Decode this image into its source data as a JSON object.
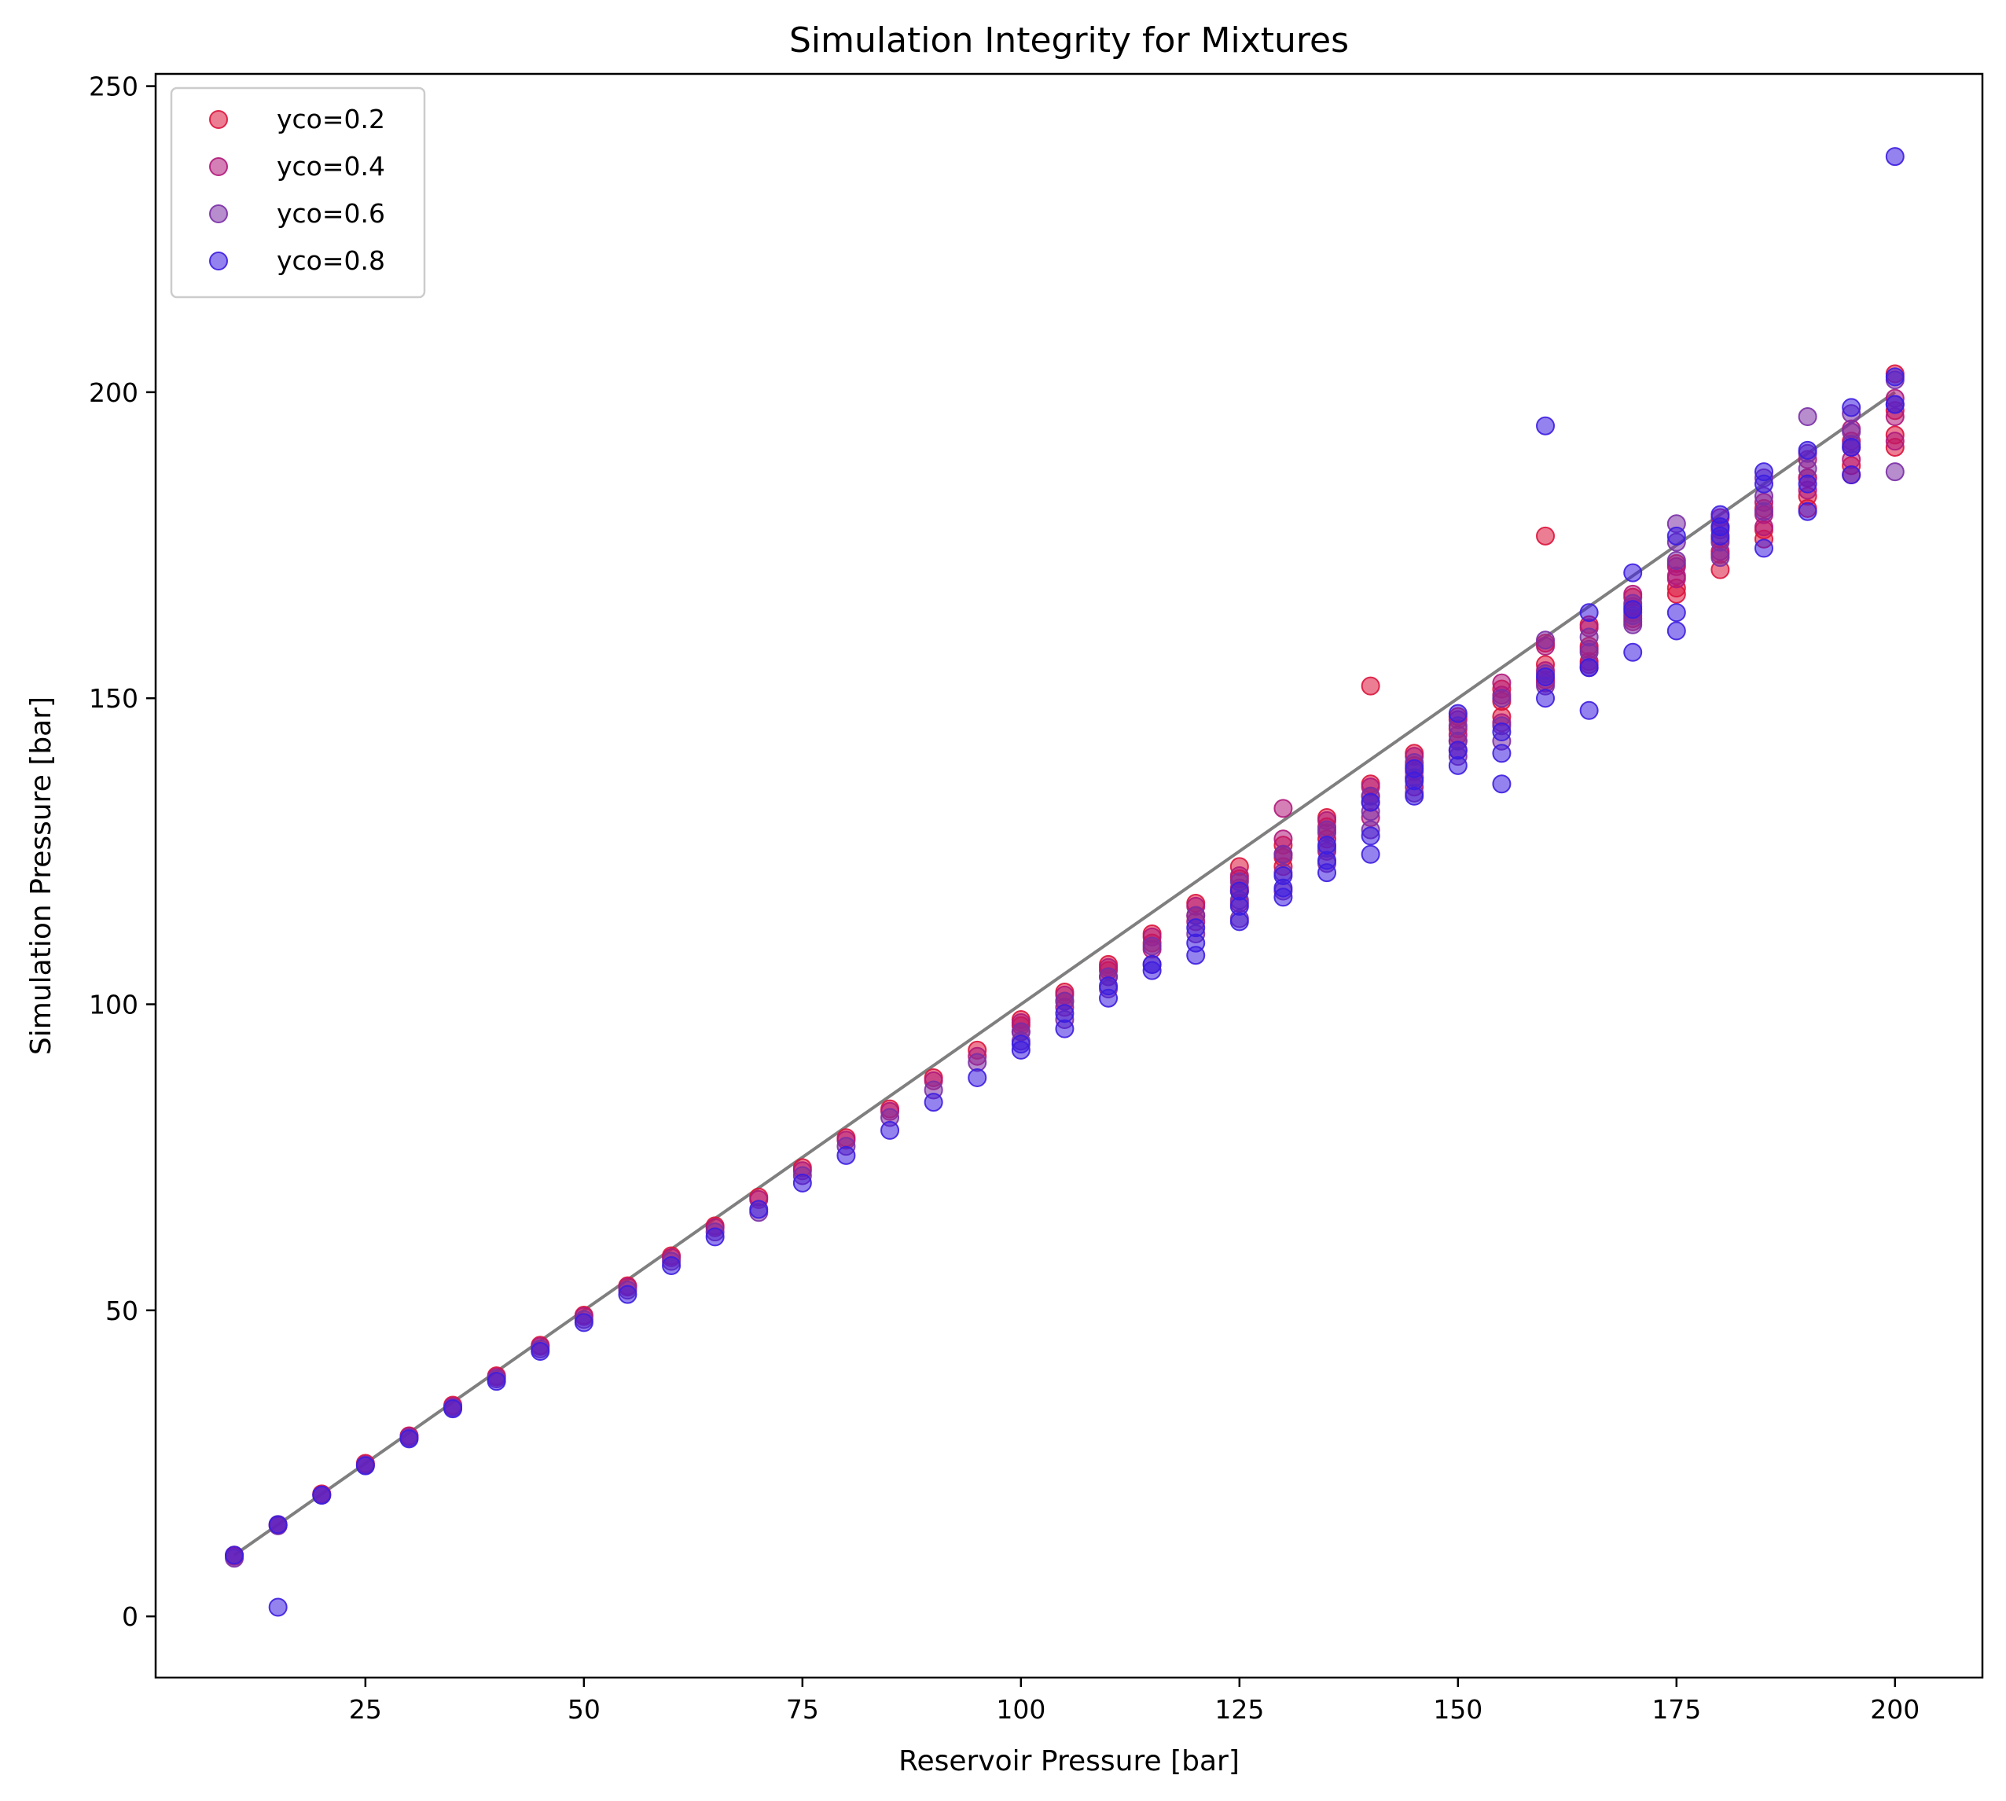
{
  "chart_data": {
    "type": "scatter",
    "title": "Simulation Integrity for Mixtures",
    "xlabel": "Reservoir Pressure [bar]",
    "ylabel": "Simulation Pressure [bar]",
    "xlim": [
      1,
      210
    ],
    "ylim": [
      -10,
      252
    ],
    "xticks": [
      25,
      50,
      75,
      100,
      125,
      150,
      175,
      200
    ],
    "yticks": [
      0,
      50,
      100,
      150,
      200,
      250
    ],
    "grid": false,
    "legend_position": "top-left",
    "reference_line": {
      "x": [
        10,
        200
      ],
      "y": [
        10,
        200
      ],
      "color": "#7f7f7f"
    },
    "series": [
      {
        "name": "yco=0.2",
        "color": "#dc143c",
        "points": [
          [
            10,
            10
          ],
          [
            15,
            15
          ],
          [
            20,
            20
          ],
          [
            25,
            25
          ],
          [
            30,
            29.5
          ],
          [
            35,
            34.5
          ],
          [
            40,
            39.3
          ],
          [
            45,
            44.3
          ],
          [
            50,
            49.2
          ],
          [
            55,
            54
          ],
          [
            60,
            58.9
          ],
          [
            65,
            63.8
          ],
          [
            70,
            68.5
          ],
          [
            75,
            73.3
          ],
          [
            80,
            78.2
          ],
          [
            85,
            82.9
          ],
          [
            90,
            88
          ],
          [
            95,
            92.5
          ],
          [
            100,
            97.5
          ],
          [
            100,
            96.5
          ],
          [
            105,
            102
          ],
          [
            105,
            100.5
          ],
          [
            110,
            106.5
          ],
          [
            110,
            105.5
          ],
          [
            115,
            111.5
          ],
          [
            115,
            110
          ],
          [
            120,
            116.5
          ],
          [
            120,
            114.5
          ],
          [
            125,
            122.5
          ],
          [
            125,
            120.5
          ],
          [
            125,
            118.5
          ],
          [
            130,
            126
          ],
          [
            130,
            124
          ],
          [
            130,
            122.5
          ],
          [
            135,
            130.5
          ],
          [
            135,
            129
          ],
          [
            135,
            127
          ],
          [
            140,
            136
          ],
          [
            140,
            134
          ],
          [
            140,
            152
          ],
          [
            145,
            141
          ],
          [
            145,
            139
          ],
          [
            145,
            137
          ],
          [
            150,
            147
          ],
          [
            150,
            145
          ],
          [
            150,
            143
          ],
          [
            155,
            151.5
          ],
          [
            155,
            149.5
          ],
          [
            155,
            147
          ],
          [
            160,
            159
          ],
          [
            160,
            155.5
          ],
          [
            160,
            153
          ],
          [
            160,
            176.5
          ],
          [
            165,
            162
          ],
          [
            165,
            158.5
          ],
          [
            165,
            156
          ],
          [
            170,
            166.5
          ],
          [
            170,
            164
          ],
          [
            170,
            163
          ],
          [
            175,
            172
          ],
          [
            175,
            168
          ],
          [
            175,
            167
          ],
          [
            180,
            173.5
          ],
          [
            180,
            171
          ],
          [
            180,
            176
          ],
          [
            185,
            177.5
          ],
          [
            185,
            176
          ],
          [
            185,
            181
          ],
          [
            190,
            186
          ],
          [
            190,
            183
          ],
          [
            190,
            181
          ],
          [
            195,
            188
          ],
          [
            195,
            186.5
          ],
          [
            195,
            192
          ],
          [
            200,
            203
          ],
          [
            200,
            197
          ],
          [
            200,
            193
          ],
          [
            200,
            191
          ]
        ]
      },
      {
        "name": "yco=0.4",
        "color": "#b0187a",
        "points": [
          [
            10,
            9.8
          ],
          [
            15,
            14.9
          ],
          [
            20,
            19.9
          ],
          [
            25,
            24.8
          ],
          [
            30,
            29.4
          ],
          [
            35,
            34.3
          ],
          [
            40,
            39.1
          ],
          [
            45,
            44.1
          ],
          [
            50,
            49
          ],
          [
            55,
            53.8
          ],
          [
            60,
            58.6
          ],
          [
            65,
            63.5
          ],
          [
            70,
            68.1
          ],
          [
            75,
            72.8
          ],
          [
            80,
            77.8
          ],
          [
            85,
            82.5
          ],
          [
            90,
            87.5
          ],
          [
            95,
            91.5
          ],
          [
            100,
            97
          ],
          [
            100,
            95.5
          ],
          [
            105,
            101.5
          ],
          [
            105,
            99.5
          ],
          [
            110,
            106
          ],
          [
            110,
            104.5
          ],
          [
            115,
            111
          ],
          [
            115,
            109
          ],
          [
            120,
            116
          ],
          [
            120,
            113.5
          ],
          [
            125,
            121
          ],
          [
            125,
            119
          ],
          [
            125,
            116.5
          ],
          [
            130,
            132
          ],
          [
            130,
            127
          ],
          [
            130,
            124.5
          ],
          [
            135,
            130
          ],
          [
            135,
            128
          ],
          [
            135,
            125
          ],
          [
            140,
            135.5
          ],
          [
            140,
            133
          ],
          [
            140,
            130.5
          ],
          [
            145,
            140.5
          ],
          [
            145,
            138
          ],
          [
            145,
            135.5
          ],
          [
            150,
            146.5
          ],
          [
            150,
            144
          ],
          [
            150,
            141.5
          ],
          [
            155,
            152.5
          ],
          [
            155,
            150.5
          ],
          [
            155,
            146
          ],
          [
            160,
            158.5
          ],
          [
            160,
            154.5
          ],
          [
            160,
            152.5
          ],
          [
            165,
            161.5
          ],
          [
            165,
            158
          ],
          [
            165,
            155.5
          ],
          [
            170,
            167
          ],
          [
            170,
            165
          ],
          [
            170,
            162.5
          ],
          [
            175,
            171.5
          ],
          [
            175,
            169.5
          ],
          [
            175,
            170
          ],
          [
            180,
            179.5
          ],
          [
            180,
            177.5
          ],
          [
            180,
            174
          ],
          [
            185,
            182
          ],
          [
            185,
            180
          ],
          [
            185,
            178
          ],
          [
            190,
            189
          ],
          [
            190,
            186
          ],
          [
            190,
            184
          ],
          [
            195,
            194
          ],
          [
            195,
            191
          ],
          [
            195,
            189
          ],
          [
            200,
            199
          ],
          [
            200,
            196
          ],
          [
            200,
            192
          ]
        ]
      },
      {
        "name": "yco=0.6",
        "color": "#7b2fa6",
        "points": [
          [
            10,
            9.5
          ],
          [
            15,
            14.8
          ],
          [
            20,
            19.8
          ],
          [
            25,
            24.7
          ],
          [
            30,
            29.2
          ],
          [
            35,
            34.1
          ],
          [
            40,
            38.8
          ],
          [
            45,
            43.7
          ],
          [
            50,
            48.5
          ],
          [
            55,
            53.3
          ],
          [
            60,
            58
          ],
          [
            65,
            62.8
          ],
          [
            70,
            66
          ],
          [
            75,
            72
          ],
          [
            80,
            76.8
          ],
          [
            85,
            81.5
          ],
          [
            90,
            86
          ],
          [
            95,
            90.5
          ],
          [
            100,
            95.5
          ],
          [
            100,
            94
          ],
          [
            105,
            100.5
          ],
          [
            105,
            97.5
          ],
          [
            110,
            104.5
          ],
          [
            110,
            102.5
          ],
          [
            115,
            109.5
          ],
          [
            115,
            106.5
          ],
          [
            120,
            114.5
          ],
          [
            120,
            111.5
          ],
          [
            125,
            120
          ],
          [
            125,
            117
          ],
          [
            125,
            114
          ],
          [
            130,
            124.5
          ],
          [
            130,
            121.5
          ],
          [
            130,
            118.5
          ],
          [
            135,
            128.5
          ],
          [
            135,
            125.5
          ],
          [
            135,
            123
          ],
          [
            140,
            134
          ],
          [
            140,
            131.5
          ],
          [
            140,
            128.5
          ],
          [
            145,
            139.5
          ],
          [
            145,
            137
          ],
          [
            145,
            134.5
          ],
          [
            150,
            145.5
          ],
          [
            150,
            143
          ],
          [
            150,
            140.5
          ],
          [
            155,
            150
          ],
          [
            155,
            145.5
          ],
          [
            155,
            143
          ],
          [
            160,
            159.5
          ],
          [
            160,
            154
          ],
          [
            160,
            152
          ],
          [
            165,
            160
          ],
          [
            165,
            157.5
          ],
          [
            165,
            155
          ],
          [
            170,
            165.5
          ],
          [
            170,
            163.5
          ],
          [
            170,
            162
          ],
          [
            175,
            178.5
          ],
          [
            175,
            175.5
          ],
          [
            175,
            172.5
          ],
          [
            180,
            178
          ],
          [
            180,
            175.5
          ],
          [
            180,
            173
          ],
          [
            185,
            186
          ],
          [
            185,
            183
          ],
          [
            185,
            180.5
          ],
          [
            190,
            196
          ],
          [
            190,
            190
          ],
          [
            190,
            187.5
          ],
          [
            195,
            196.5
          ],
          [
            195,
            193.5
          ],
          [
            195,
            191.5
          ],
          [
            200,
            202
          ],
          [
            200,
            187
          ],
          [
            200,
            198
          ]
        ]
      },
      {
        "name": "yco=0.8",
        "color": "#3c1de0",
        "points": [
          [
            10,
            10
          ],
          [
            15,
            15
          ],
          [
            15,
            1.5
          ],
          [
            20,
            19.8
          ],
          [
            25,
            24.6
          ],
          [
            30,
            29
          ],
          [
            35,
            33.9
          ],
          [
            40,
            38.4
          ],
          [
            45,
            43.3
          ],
          [
            50,
            48
          ],
          [
            55,
            52.6
          ],
          [
            60,
            57.3
          ],
          [
            65,
            62
          ],
          [
            70,
            66.5
          ],
          [
            75,
            70.8
          ],
          [
            80,
            75.3
          ],
          [
            85,
            79.4
          ],
          [
            90,
            84
          ],
          [
            95,
            88
          ],
          [
            100,
            92.5
          ],
          [
            100,
            93.5
          ],
          [
            105,
            96
          ],
          [
            105,
            98.5
          ],
          [
            110,
            101
          ],
          [
            110,
            103
          ],
          [
            115,
            105.5
          ],
          [
            115,
            106.5
          ],
          [
            120,
            108
          ],
          [
            120,
            110
          ],
          [
            120,
            112.5
          ],
          [
            125,
            113.5
          ],
          [
            125,
            116
          ],
          [
            125,
            118.5
          ],
          [
            130,
            117.5
          ],
          [
            130,
            119
          ],
          [
            130,
            121
          ],
          [
            135,
            121.5
          ],
          [
            135,
            123.5
          ],
          [
            135,
            126
          ],
          [
            140,
            124.5
          ],
          [
            140,
            127.5
          ],
          [
            140,
            133
          ],
          [
            145,
            134
          ],
          [
            145,
            136.5
          ],
          [
            145,
            138.5
          ],
          [
            150,
            139
          ],
          [
            150,
            141.5
          ],
          [
            150,
            147.5
          ],
          [
            155,
            136
          ],
          [
            155,
            141
          ],
          [
            155,
            144.5
          ],
          [
            160,
            150
          ],
          [
            160,
            153.5
          ],
          [
            160,
            194.5
          ],
          [
            165,
            148
          ],
          [
            165,
            155
          ],
          [
            165,
            164
          ],
          [
            170,
            157.5
          ],
          [
            170,
            164.5
          ],
          [
            170,
            170.5
          ],
          [
            175,
            161
          ],
          [
            175,
            164
          ],
          [
            175,
            176.5
          ],
          [
            180,
            176.5
          ],
          [
            180,
            178
          ],
          [
            180,
            180
          ],
          [
            185,
            174.5
          ],
          [
            185,
            185
          ],
          [
            185,
            187
          ],
          [
            190,
            180.5
          ],
          [
            190,
            185
          ],
          [
            190,
            190.5
          ],
          [
            195,
            186.5
          ],
          [
            195,
            191
          ],
          [
            195,
            197.5
          ],
          [
            200,
            238.5
          ],
          [
            200,
            202.5
          ],
          [
            200,
            198
          ]
        ]
      }
    ]
  }
}
